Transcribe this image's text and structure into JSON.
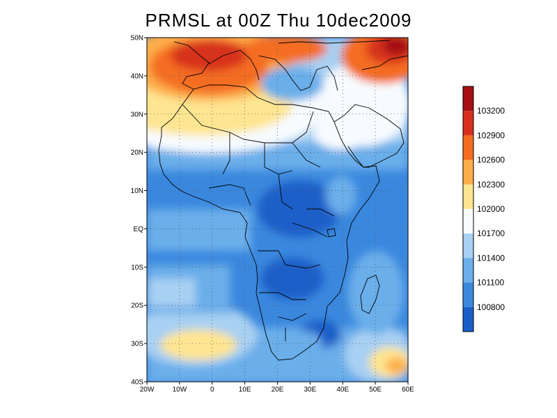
{
  "title": "PRMSL at 00Z Thu 10dec2009",
  "map": {
    "lon_range": [
      -20,
      60
    ],
    "lat_range": [
      -40,
      50
    ],
    "lat_ticks": [
      "50N",
      "40N",
      "30N",
      "20N",
      "10N",
      "EQ",
      "10S",
      "20S",
      "30S",
      "40S"
    ],
    "lon_ticks": [
      "20W",
      "10W",
      "0",
      "10E",
      "20E",
      "30E",
      "40E",
      "50E",
      "60E"
    ],
    "grid": "dotted"
  },
  "colorbar": {
    "labels": [
      "103200",
      "102900",
      "102600",
      "102300",
      "102000",
      "101700",
      "101400",
      "101100",
      "100800"
    ],
    "colors": [
      "#a50f15",
      "#d7301f",
      "#f46d21",
      "#fdae4a",
      "#fee591",
      "#f7fbff",
      "#a8d0f2",
      "#6aaeea",
      "#3a88de",
      "#1a5fc8"
    ]
  }
}
